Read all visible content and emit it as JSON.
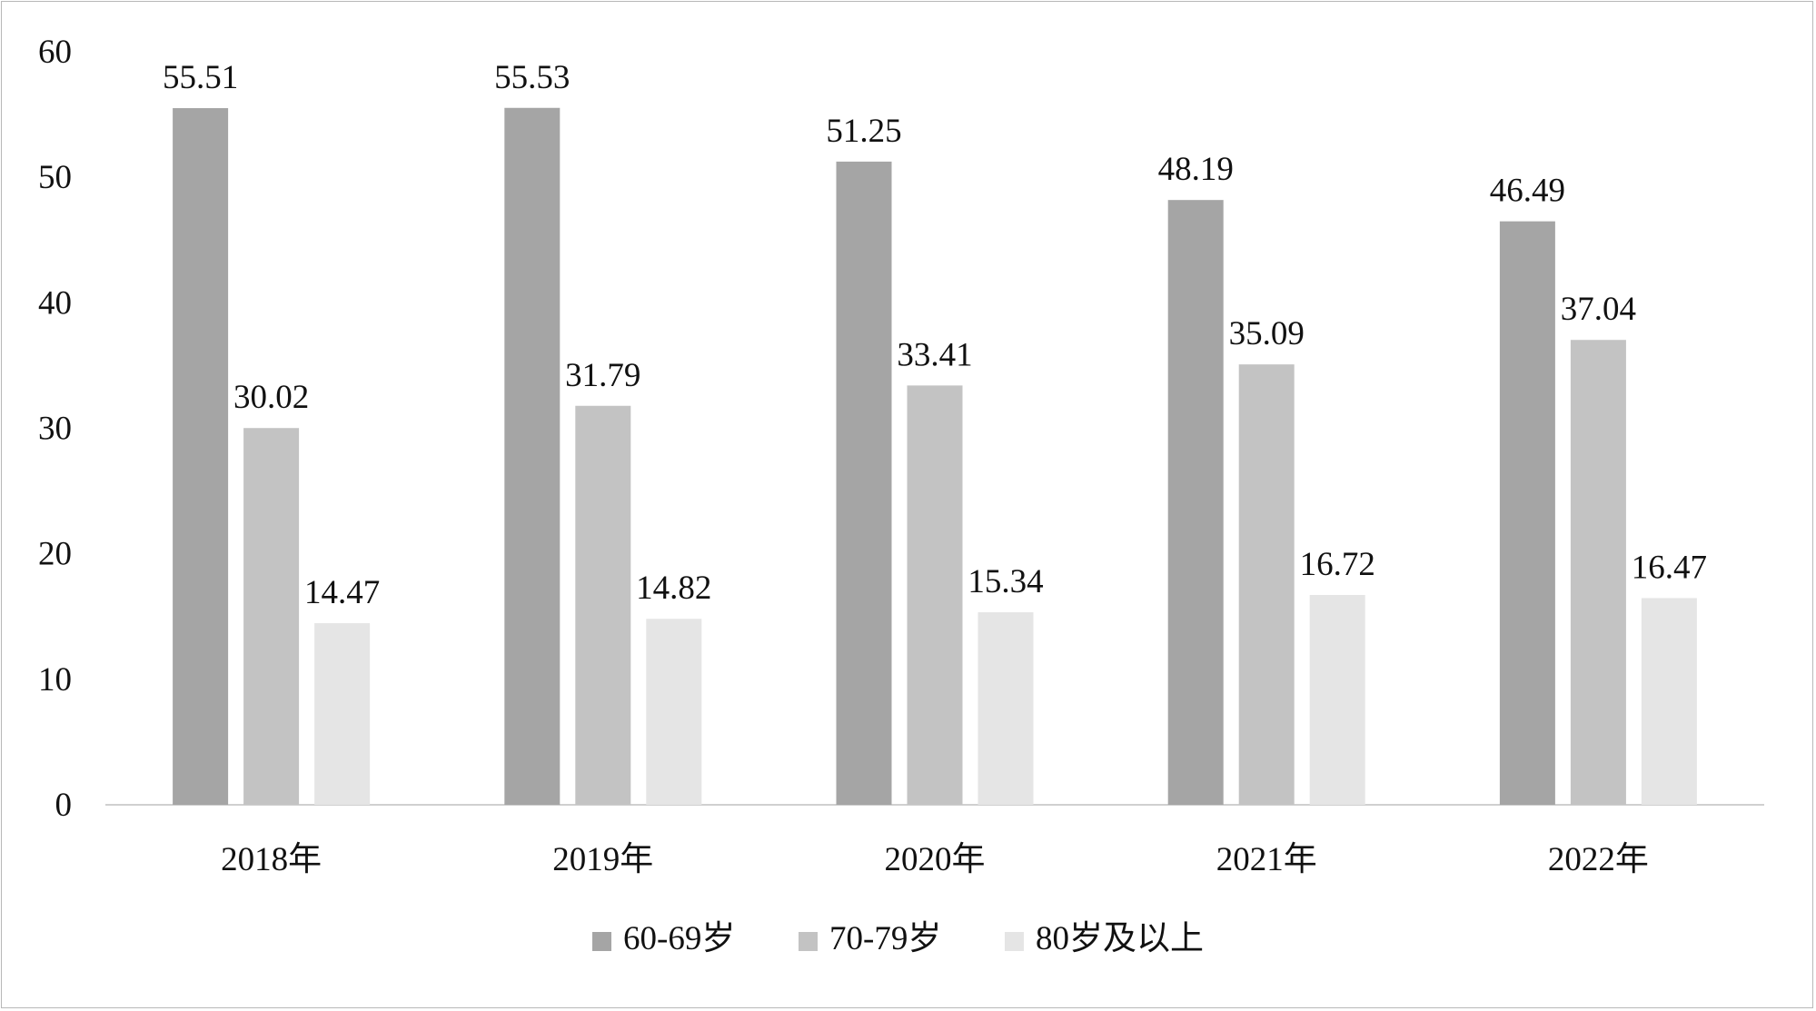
{
  "chart_data": {
    "type": "bar",
    "categories": [
      "2018年",
      "2019年",
      "2020年",
      "2021年",
      "2022年"
    ],
    "series": [
      {
        "name": "60-69岁",
        "values": [
          55.51,
          55.53,
          51.25,
          48.19,
          46.49
        ],
        "color": "#a5a5a5"
      },
      {
        "name": "70-79岁",
        "values": [
          30.02,
          31.79,
          33.41,
          35.09,
          37.04
        ],
        "color": "#c3c3c3"
      },
      {
        "name": "80岁及以上",
        "values": [
          14.47,
          14.82,
          15.34,
          16.72,
          16.47
        ],
        "color": "#e5e5e5"
      }
    ],
    "value_labels": [
      [
        "55.51",
        "55.53",
        "51.25",
        "48.19",
        "46.49"
      ],
      [
        "30.02",
        "31.79",
        "33.41",
        "35.09",
        "37.04"
      ],
      [
        "14.47",
        "14.82",
        "15.34",
        "16.72",
        "16.47"
      ]
    ],
    "y_ticks": [
      "0",
      "10",
      "20",
      "30",
      "40",
      "50",
      "60"
    ],
    "ylim": [
      0,
      60
    ],
    "grid": false,
    "legend_position": "bottom",
    "title": "",
    "xlabel": "",
    "ylabel": ""
  }
}
